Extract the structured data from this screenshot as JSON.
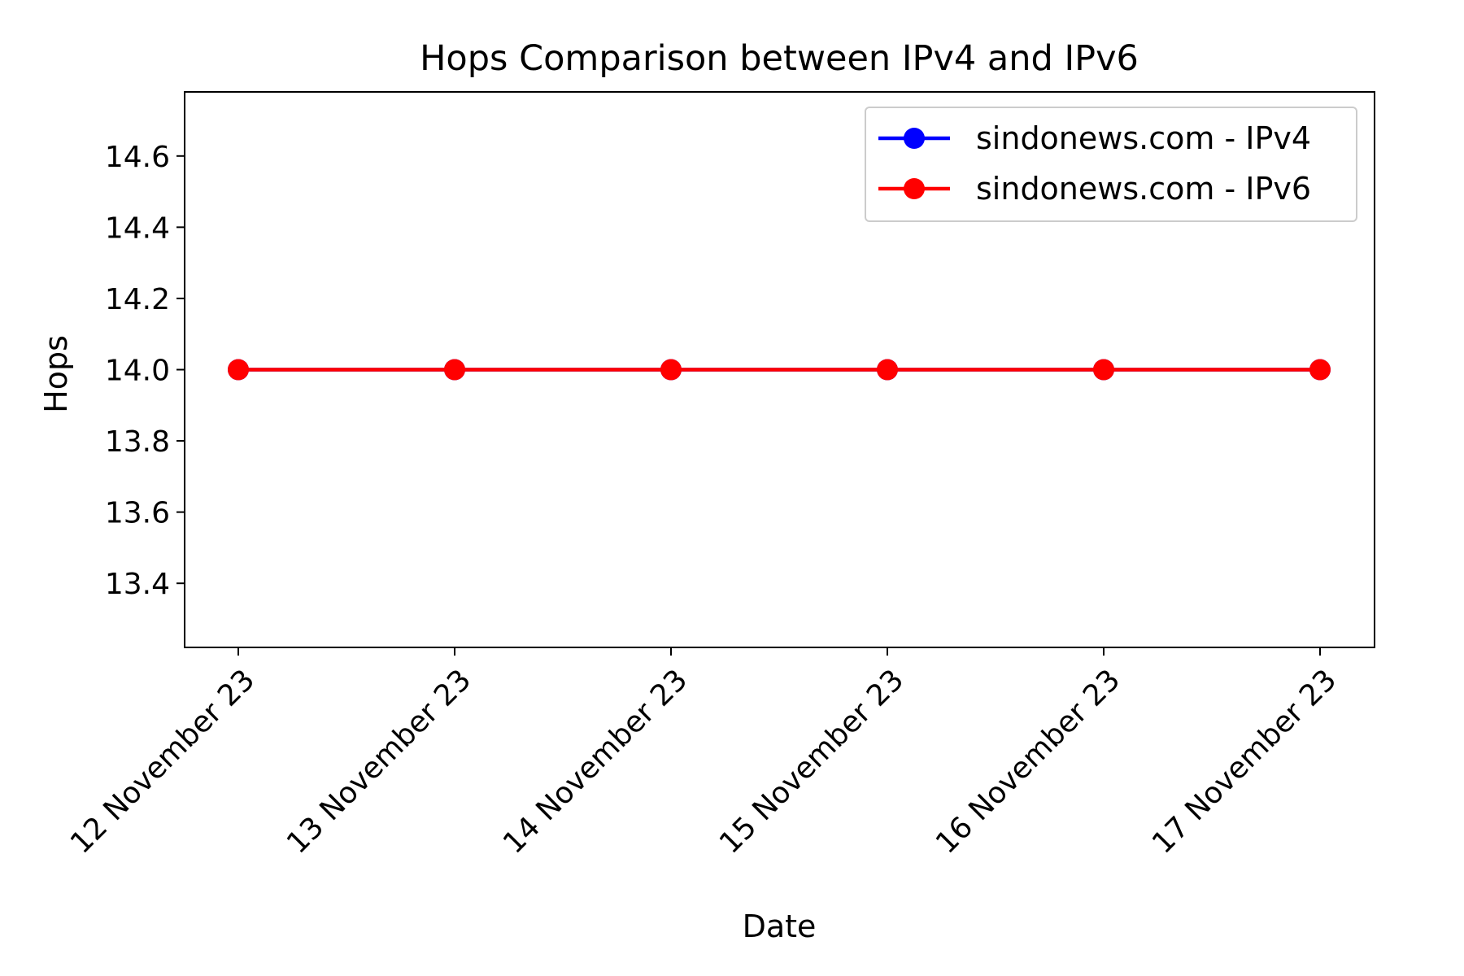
{
  "chart_data": {
    "type": "line",
    "title": "Hops Comparison between IPv4 and IPv6",
    "xlabel": "Date",
    "ylabel": "Hops",
    "categories": [
      "12 November 23",
      "13 November 23",
      "14 November 23",
      "15 November 23",
      "16 November 23",
      "17 November 23"
    ],
    "ylim": [
      13.22,
      14.78
    ],
    "yticks": [
      "13.4",
      "13.6",
      "13.8",
      "14.0",
      "14.2",
      "14.4",
      "14.6"
    ],
    "grid": false,
    "legend_position": "top-right",
    "series": [
      {
        "name": "sindonews.com - IPv4",
        "color": "#0000ff",
        "marker": "circle",
        "values": [
          14,
          14,
          14,
          14,
          14,
          14
        ]
      },
      {
        "name": "sindonews.com - IPv6",
        "color": "#ff0000",
        "marker": "circle",
        "values": [
          14,
          14,
          14,
          14,
          14,
          14
        ]
      }
    ]
  }
}
